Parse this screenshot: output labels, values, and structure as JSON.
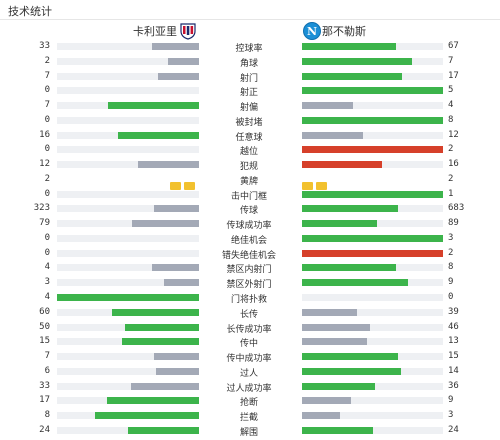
{
  "page": {
    "title": "技术统计"
  },
  "teams": {
    "home": "卡利亚里",
    "away": "那不勒斯",
    "away_logo_letter": "N"
  },
  "colors": {
    "green": "#3cb44b",
    "gray": "#a3a9b6",
    "red": "#d6402a",
    "track": "#eef0f3",
    "yellow": "#f2c12e"
  },
  "stats": [
    {
      "label": "控球率",
      "home": "33",
      "away": "67",
      "home_fill": 0.33,
      "away_fill": 0.67,
      "home_color": "gray",
      "away_color": "green"
    },
    {
      "label": "角球",
      "home": "2",
      "away": "7",
      "home_fill": 0.22,
      "away_fill": 0.78,
      "home_color": "gray",
      "away_color": "green"
    },
    {
      "label": "射门",
      "home": "7",
      "away": "17",
      "home_fill": 0.29,
      "away_fill": 0.71,
      "home_color": "gray",
      "away_color": "green"
    },
    {
      "label": "射正",
      "home": "0",
      "away": "5",
      "home_fill": 0,
      "away_fill": 1,
      "home_color": "gray",
      "away_color": "green"
    },
    {
      "label": "射偏",
      "home": "7",
      "away": "4",
      "home_fill": 0.64,
      "away_fill": 0.36,
      "home_color": "green",
      "away_color": "gray"
    },
    {
      "label": "被封堵",
      "home": "0",
      "away": "8",
      "home_fill": 0,
      "away_fill": 1,
      "home_color": "gray",
      "away_color": "green"
    },
    {
      "label": "任意球",
      "home": "16",
      "away": "12",
      "home_fill": 0.57,
      "away_fill": 0.43,
      "home_color": "green",
      "away_color": "gray"
    },
    {
      "label": "越位",
      "home": "0",
      "away": "2",
      "home_fill": 0,
      "away_fill": 1,
      "home_color": "gray",
      "away_color": "red"
    },
    {
      "label": "犯规",
      "home": "12",
      "away": "16",
      "home_fill": 0.43,
      "away_fill": 0.57,
      "home_color": "gray",
      "away_color": "red"
    },
    {
      "label": "黄牌",
      "home": "2",
      "away": "2",
      "home_cards": 2,
      "away_cards": 2
    },
    {
      "label": "击中门框",
      "home": "0",
      "away": "1",
      "home_fill": 0,
      "away_fill": 1,
      "home_color": "gray",
      "away_color": "green"
    },
    {
      "label": "传球",
      "home": "323",
      "away": "683",
      "home_fill": 0.32,
      "away_fill": 0.68,
      "home_color": "gray",
      "away_color": "green"
    },
    {
      "label": "传球成功率",
      "home": "79",
      "away": "89",
      "home_fill": 0.47,
      "away_fill": 0.53,
      "home_color": "gray",
      "away_color": "green"
    },
    {
      "label": "绝佳机会",
      "home": "0",
      "away": "3",
      "home_fill": 0,
      "away_fill": 1,
      "home_color": "gray",
      "away_color": "green"
    },
    {
      "label": "错失绝佳机会",
      "home": "0",
      "away": "2",
      "home_fill": 0,
      "away_fill": 1,
      "home_color": "gray",
      "away_color": "red"
    },
    {
      "label": "禁区内射门",
      "home": "4",
      "away": "8",
      "home_fill": 0.33,
      "away_fill": 0.67,
      "home_color": "gray",
      "away_color": "green"
    },
    {
      "label": "禁区外射门",
      "home": "3",
      "away": "9",
      "home_fill": 0.25,
      "away_fill": 0.75,
      "home_color": "gray",
      "away_color": "green"
    },
    {
      "label": "门将扑救",
      "home": "4",
      "away": "0",
      "home_fill": 1,
      "away_fill": 0,
      "home_color": "green",
      "away_color": "gray"
    },
    {
      "label": "长传",
      "home": "60",
      "away": "39",
      "home_fill": 0.61,
      "away_fill": 0.39,
      "home_color": "green",
      "away_color": "gray"
    },
    {
      "label": "长传成功率",
      "home": "50",
      "away": "46",
      "home_fill": 0.52,
      "away_fill": 0.48,
      "home_color": "green",
      "away_color": "gray"
    },
    {
      "label": "传中",
      "home": "15",
      "away": "13",
      "home_fill": 0.54,
      "away_fill": 0.46,
      "home_color": "green",
      "away_color": "gray"
    },
    {
      "label": "传中成功率",
      "home": "7",
      "away": "15",
      "home_fill": 0.32,
      "away_fill": 0.68,
      "home_color": "gray",
      "away_color": "green"
    },
    {
      "label": "过人",
      "home": "6",
      "away": "14",
      "home_fill": 0.3,
      "away_fill": 0.7,
      "home_color": "gray",
      "away_color": "green"
    },
    {
      "label": "过人成功率",
      "home": "33",
      "away": "36",
      "home_fill": 0.48,
      "away_fill": 0.52,
      "home_color": "gray",
      "away_color": "green"
    },
    {
      "label": "抢断",
      "home": "17",
      "away": "9",
      "home_fill": 0.65,
      "away_fill": 0.35,
      "home_color": "green",
      "away_color": "gray"
    },
    {
      "label": "拦截",
      "home": "8",
      "away": "3",
      "home_fill": 0.73,
      "away_fill": 0.27,
      "home_color": "green",
      "away_color": "gray"
    },
    {
      "label": "解围",
      "home": "24",
      "away": "24",
      "home_fill": 0.5,
      "away_fill": 0.5,
      "home_color": "green",
      "away_color": "green"
    }
  ]
}
